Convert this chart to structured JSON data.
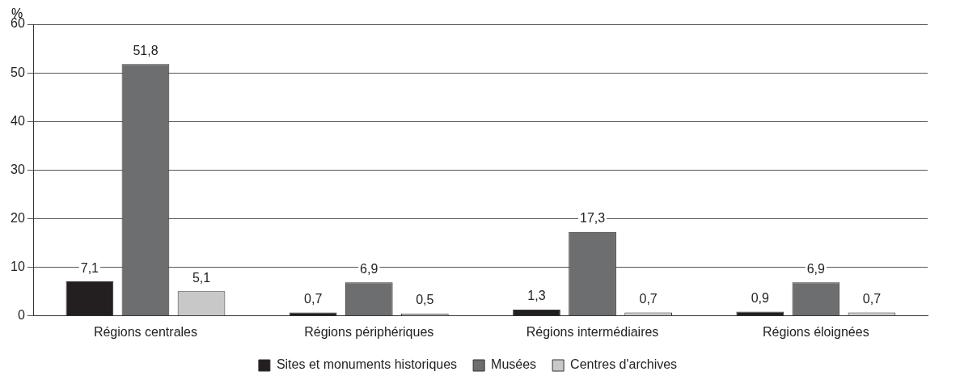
{
  "chart_data": {
    "type": "bar",
    "ylabel": "%",
    "categories": [
      "Régions centrales",
      "Régions périphériques",
      "Régions intermédiaires",
      "Régions éloignées"
    ],
    "series": [
      {
        "name": "Sites et monuments historiques",
        "color": "#231f20",
        "values": [
          7.1,
          0.7,
          1.3,
          0.9
        ],
        "value_labels": [
          "7,1",
          "0,7",
          "1,3",
          "0,9"
        ]
      },
      {
        "name": "Musées",
        "color": "#6d6e70",
        "values": [
          51.8,
          6.9,
          17.3,
          6.9
        ],
        "value_labels": [
          "51,8",
          "6,9",
          "17,3",
          "6,9"
        ]
      },
      {
        "name": "Centres d'archives",
        "color": "#c8c8c8",
        "values": [
          5.1,
          0.5,
          0.7,
          0.7
        ],
        "value_labels": [
          "5,1",
          "0,5",
          "0,7",
          "0,7"
        ]
      }
    ],
    "ylim": [
      0,
      60
    ],
    "yticks": [
      0,
      10,
      20,
      30,
      40,
      50,
      60
    ],
    "grid": "y",
    "legend": "bottom"
  }
}
